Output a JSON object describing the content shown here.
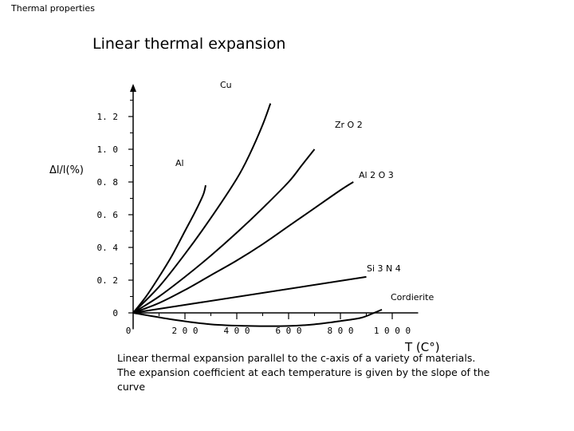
{
  "header": {
    "text": "Thermal properties"
  },
  "caption": {
    "text": "Linear thermal expansion parallel to the c-axis of a variety of materials. The expansion coefficient at each temperature is given by the slope of the curve"
  },
  "chart_data": {
    "type": "line",
    "title": "Linear thermal expansion",
    "xlabel": "T (C°)",
    "ylabel": "Δl/l(%)",
    "xlim": [
      0,
      1100
    ],
    "ylim": [
      -0.1,
      1.4
    ],
    "x_ticks": [
      {
        "v": 0,
        "label": "0"
      },
      {
        "v": 200,
        "label": "2 0 0"
      },
      {
        "v": 400,
        "label": "4 0 0"
      },
      {
        "v": 600,
        "label": "6 0 0"
      },
      {
        "v": 800,
        "label": "8 0 0"
      },
      {
        "v": 1000,
        "label": "1 0 0 0"
      }
    ],
    "y_ticks": [
      {
        "v": 0,
        "label": "0"
      },
      {
        "v": 0.2,
        "label": "0. 2"
      },
      {
        "v": 0.4,
        "label": "0. 4"
      },
      {
        "v": 0.6,
        "label": "0. 6"
      },
      {
        "v": 0.8,
        "label": "0. 8"
      },
      {
        "v": 1.0,
        "label": "1. 0"
      },
      {
        "v": 1.2,
        "label": "1. 2"
      }
    ],
    "series": [
      {
        "name": "Cu",
        "label": "Cu",
        "points": [
          [
            0,
            0
          ],
          [
            100,
            0.16
          ],
          [
            200,
            0.36
          ],
          [
            300,
            0.58
          ],
          [
            400,
            0.82
          ],
          [
            450,
            0.97
          ],
          [
            500,
            1.15
          ],
          [
            530,
            1.28
          ]
        ]
      },
      {
        "name": "Zr O2",
        "label": "Zr O 2",
        "points": [
          [
            0,
            0
          ],
          [
            100,
            0.1
          ],
          [
            200,
            0.22
          ],
          [
            300,
            0.35
          ],
          [
            400,
            0.49
          ],
          [
            500,
            0.64
          ],
          [
            600,
            0.8
          ],
          [
            650,
            0.9
          ],
          [
            700,
            1.0
          ]
        ]
      },
      {
        "name": "Al",
        "label": "Al",
        "points": [
          [
            0,
            0
          ],
          [
            50,
            0.1
          ],
          [
            100,
            0.22
          ],
          [
            150,
            0.35
          ],
          [
            200,
            0.5
          ],
          [
            240,
            0.62
          ],
          [
            270,
            0.72
          ],
          [
            280,
            0.78
          ]
        ]
      },
      {
        "name": "Al2 O3",
        "label": "Al 2 O 3",
        "points": [
          [
            0,
            0
          ],
          [
            100,
            0.06
          ],
          [
            200,
            0.14
          ],
          [
            300,
            0.23
          ],
          [
            400,
            0.32
          ],
          [
            500,
            0.42
          ],
          [
            600,
            0.53
          ],
          [
            700,
            0.64
          ],
          [
            800,
            0.75
          ],
          [
            850,
            0.8
          ]
        ]
      },
      {
        "name": "Si3 N4",
        "label": "Si 3 N 4",
        "points": [
          [
            0,
            0
          ],
          [
            900,
            0.22
          ]
        ]
      },
      {
        "name": "Cordierite",
        "label": "Cordierite",
        "points": [
          [
            0,
            0
          ],
          [
            150,
            -0.04
          ],
          [
            300,
            -0.07
          ],
          [
            450,
            -0.08
          ],
          [
            600,
            -0.08
          ],
          [
            700,
            -0.07
          ],
          [
            800,
            -0.05
          ],
          [
            880,
            -0.03
          ],
          [
            930,
            0.0
          ],
          [
            960,
            0.02
          ]
        ]
      }
    ]
  }
}
